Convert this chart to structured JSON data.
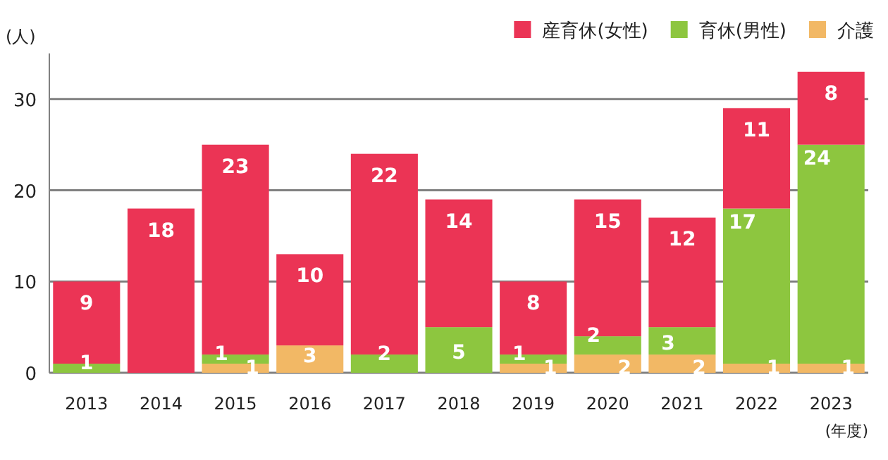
{
  "chart_data": {
    "type": "bar",
    "stacked": true,
    "ylabel": "(人)",
    "xlabel": "(年度)",
    "categories": [
      "2013",
      "2014",
      "2015",
      "2016",
      "2017",
      "2018",
      "2019",
      "2020",
      "2021",
      "2022",
      "2023"
    ],
    "series": [
      {
        "name": "介護",
        "color": "#f2b865",
        "values": [
          null,
          null,
          1,
          3,
          null,
          null,
          1,
          2,
          2,
          1,
          1
        ],
        "value_labels": [
          null,
          null,
          "1",
          "3",
          null,
          null,
          "1",
          "2",
          "2",
          "1",
          "1"
        ]
      },
      {
        "name": "育休(男性)",
        "color": "#8dc63f",
        "values": [
          1,
          null,
          1,
          null,
          2,
          5,
          1,
          2,
          3,
          17,
          24
        ],
        "value_labels": [
          "1",
          null,
          "1",
          null,
          "2",
          "5",
          "1",
          "2",
          "3",
          "17",
          "24"
        ]
      },
      {
        "name": "産育休(女性)",
        "color": "#eb3455",
        "values": [
          9,
          18,
          23,
          10,
          22,
          14,
          8,
          15,
          12,
          11,
          8
        ],
        "value_labels": [
          "9",
          "18",
          "23",
          "10",
          "22",
          "14",
          "8",
          "15",
          "12",
          "11",
          "8"
        ]
      }
    ],
    "ylim": [
      0,
      35
    ],
    "yticks": [
      0,
      10,
      20,
      30
    ],
    "grid": "y",
    "legend": "top right"
  }
}
